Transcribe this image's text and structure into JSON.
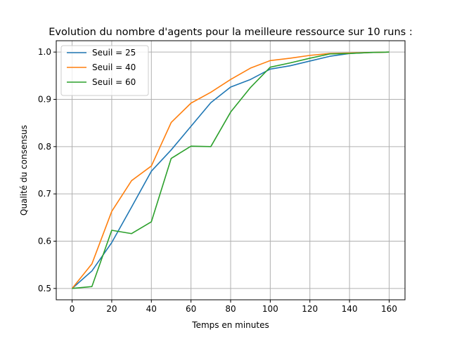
{
  "chart_data": {
    "type": "line",
    "title": "Evolution du nombre d'agents pour la meilleure ressource sur 10 runs :",
    "xlabel": "Temps en minutes",
    "ylabel": "Qualité du consensus",
    "xlim": [
      -8,
      168
    ],
    "ylim": [
      0.476,
      1.024
    ],
    "xticks": [
      0,
      20,
      40,
      60,
      80,
      100,
      120,
      140,
      160
    ],
    "yticks": [
      0.5,
      0.6,
      0.7,
      0.8,
      0.9,
      1.0
    ],
    "xtick_labels": [
      "0",
      "20",
      "40",
      "60",
      "80",
      "100",
      "120",
      "140",
      "160"
    ],
    "ytick_labels": [
      "0.5",
      "0.6",
      "0.7",
      "0.8",
      "0.9",
      "1.0"
    ],
    "grid": true,
    "legend_position": "top-left",
    "x": [
      0,
      10,
      20,
      30,
      40,
      50,
      60,
      70,
      80,
      90,
      100,
      110,
      120,
      130,
      140,
      150,
      160
    ],
    "series": [
      {
        "name": "Seuil = 25",
        "color": "#1f77b4",
        "values": [
          0.5,
          0.537,
          0.597,
          0.672,
          0.748,
          0.793,
          0.843,
          0.893,
          0.926,
          0.942,
          0.964,
          0.971,
          0.981,
          0.991,
          0.997,
          0.999,
          1.0
        ]
      },
      {
        "name": "Seuil = 40",
        "color": "#ff7f0e",
        "values": [
          0.5,
          0.552,
          0.663,
          0.728,
          0.759,
          0.851,
          0.892,
          0.915,
          0.942,
          0.966,
          0.982,
          0.987,
          0.993,
          0.997,
          0.998,
          0.999,
          1.0
        ]
      },
      {
        "name": "Seuil = 60",
        "color": "#2ca02c",
        "values": [
          0.5,
          0.504,
          0.623,
          0.616,
          0.641,
          0.775,
          0.801,
          0.8,
          0.873,
          0.925,
          0.968,
          0.977,
          0.987,
          0.996,
          0.997,
          0.999,
          1.0
        ]
      }
    ]
  }
}
